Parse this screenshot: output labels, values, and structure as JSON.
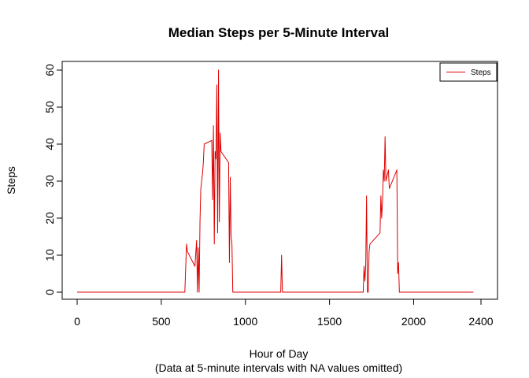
{
  "chart_data": {
    "type": "line",
    "title": "Median Steps per 5-Minute Interval",
    "xlabel": "Hour of Day",
    "xlabel_sub": "(Data at 5-minute intervals with NA values omitted)",
    "ylabel": "Steps",
    "xlim": [
      0,
      2400
    ],
    "ylim": [
      0,
      60
    ],
    "x_ticks": [
      0,
      500,
      1000,
      1500,
      2000,
      2400
    ],
    "y_ticks": [
      0,
      10,
      20,
      30,
      40,
      50,
      60
    ],
    "grid": false,
    "legend_position": "top-right",
    "series": [
      {
        "name": "Steps",
        "color": "#dd0000",
        "x": [
          0,
          640,
          650,
          655,
          700,
          710,
          715,
          720,
          725,
          730,
          735,
          740,
          745,
          750,
          755,
          800,
          805,
          810,
          815,
          820,
          825,
          830,
          835,
          840,
          845,
          850,
          855,
          900,
          905,
          910,
          915,
          920,
          925,
          930,
          1210,
          1215,
          1220,
          1225,
          1700,
          1705,
          1710,
          1715,
          1720,
          1725,
          1730,
          1735,
          1740,
          1800,
          1805,
          1810,
          1815,
          1820,
          1825,
          1830,
          1835,
          1840,
          1845,
          1850,
          1855,
          1900,
          1905,
          1910,
          1915,
          1920,
          2355
        ],
        "y": [
          0,
          0,
          13,
          11,
          7,
          14,
          0,
          12,
          0,
          19,
          28,
          30,
          32,
          35,
          40,
          41,
          25,
          45,
          13,
          38,
          36,
          56,
          16,
          60,
          19,
          43,
          38,
          35,
          8,
          31,
          15,
          13,
          0,
          0,
          0,
          10,
          0,
          0,
          0,
          7,
          3,
          7,
          26,
          0,
          0,
          11,
          13,
          16,
          26,
          20,
          25,
          33,
          30,
          42,
          30,
          31,
          32,
          33,
          28,
          33,
          5,
          8,
          0,
          0,
          0
        ]
      }
    ]
  }
}
